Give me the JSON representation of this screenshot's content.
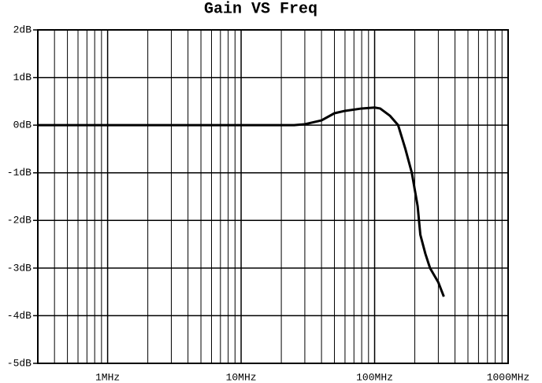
{
  "chart_data": {
    "type": "line",
    "title": "Gain VS Freq",
    "log_x": true,
    "grid": true,
    "x": [
      0.3,
      1,
      5,
      10,
      20,
      25,
      30,
      40,
      50,
      60,
      80,
      100,
      110,
      130,
      150,
      170,
      190,
      210,
      220,
      240,
      260,
      300,
      330
    ],
    "series": [
      {
        "color": "#000000",
        "values": [
          0,
          0,
          0,
          0,
          0,
          0,
          0.02,
          0.1,
          0.25,
          0.3,
          0.35,
          0.37,
          0.35,
          0.2,
          0,
          -0.5,
          -1.0,
          -1.7,
          -2.3,
          -2.7,
          -3.0,
          -3.3,
          -3.6
        ]
      }
    ],
    "xlim": [
      0.3,
      1000
    ],
    "xticks": [
      {
        "value": 1,
        "label": "1MHz"
      },
      {
        "value": 10,
        "label": "10MHz"
      },
      {
        "value": 100,
        "label": "100MHz"
      },
      {
        "value": 1000,
        "label": "1000MHz"
      }
    ],
    "ylim": [
      -5,
      2
    ],
    "yticks": [
      {
        "value": -5,
        "label": "-5dB"
      },
      {
        "value": -4,
        "label": "-4dB"
      },
      {
        "value": -3,
        "label": "-3dB"
      },
      {
        "value": -2,
        "label": "-2dB"
      },
      {
        "value": -1,
        "label": "-1dB"
      },
      {
        "value": 0,
        "label": "0dB"
      },
      {
        "value": 1,
        "label": "1dB"
      },
      {
        "value": 2,
        "label": "2dB"
      }
    ]
  }
}
